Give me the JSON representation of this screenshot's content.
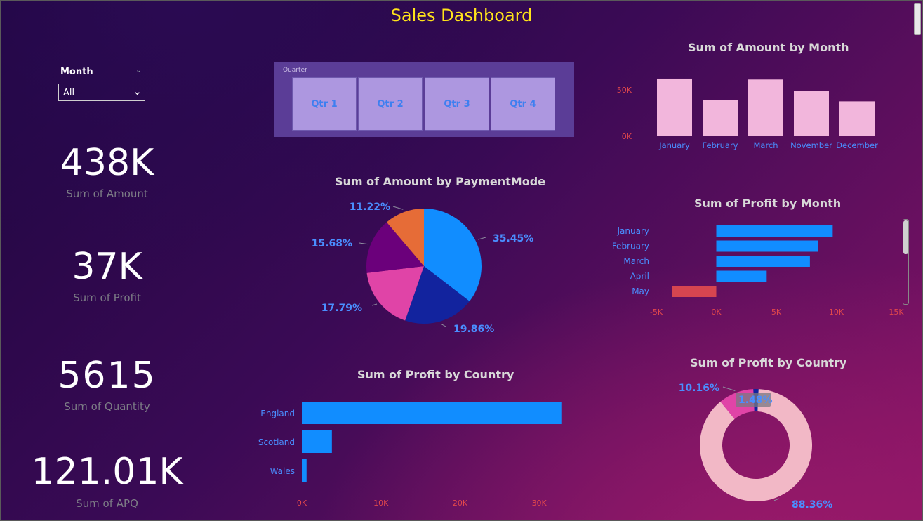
{
  "title": "Sales Dashboard",
  "slicer": {
    "label": "Month",
    "value": "All"
  },
  "kpis": [
    {
      "value": "438K",
      "label": "Sum of Amount"
    },
    {
      "value": "37K",
      "label": "Sum of Profit"
    },
    {
      "value": "5615",
      "label": "Sum of Quantity"
    },
    {
      "value": "121.01K",
      "label": "Sum of APQ"
    }
  ],
  "quarter_slicer": {
    "label": "Quarter",
    "options": [
      "Qtr 1",
      "Qtr 2",
      "Qtr 3",
      "Qtr 4"
    ]
  },
  "colors": {
    "bar_pink": "#f2b6dc",
    "bar_blue": "#118dff",
    "negative": "#d64550",
    "title_yellow": "#ffe31a",
    "label_blue": "#4a8eff",
    "axis_red": "#e0474c"
  },
  "chart_data": [
    {
      "id": "amount_by_month",
      "type": "bar",
      "title": "Sum of Amount by Month",
      "categories": [
        "January",
        "February",
        "March",
        "November",
        "December"
      ],
      "values": [
        62000,
        39000,
        61000,
        49000,
        37500
      ],
      "yticks": [
        "0K",
        "50K"
      ],
      "ytick_values": [
        0,
        50000
      ],
      "ylim": [
        0,
        65000
      ]
    },
    {
      "id": "amount_by_paymentmode",
      "type": "pie",
      "title": "Sum of Amount by PaymentMode",
      "values": [
        35.45,
        19.86,
        17.79,
        15.68,
        11.22
      ],
      "labels": [
        "35.45%",
        "19.86%",
        "17.79%",
        "15.68%",
        "11.22%"
      ],
      "colors": [
        "#118dff",
        "#12239e",
        "#e044a7",
        "#6b007b",
        "#e66c37"
      ]
    },
    {
      "id": "profit_by_month",
      "type": "bar",
      "orientation": "horizontal",
      "title": "Sum of Profit by Month",
      "categories": [
        "January",
        "February",
        "March",
        "April",
        "May"
      ],
      "values": [
        9700,
        8500,
        7800,
        4200,
        -3700
      ],
      "xticks": [
        "-5K",
        "0K",
        "5K",
        "10K",
        "15K"
      ],
      "xtick_values": [
        -5000,
        0,
        5000,
        10000,
        15000
      ],
      "xlim": [
        -5000,
        15000
      ]
    },
    {
      "id": "profit_by_country_bar",
      "type": "bar",
      "orientation": "horizontal",
      "title": "Sum of Profit by Country",
      "categories": [
        "England",
        "Scotland",
        "Wales"
      ],
      "values": [
        32800,
        3800,
        600
      ],
      "xticks": [
        "0K",
        "10K",
        "20K",
        "30K"
      ],
      "xtick_values": [
        0,
        10000,
        20000,
        30000
      ],
      "xlim": [
        0,
        33000
      ]
    },
    {
      "id": "profit_by_country_donut",
      "type": "pie",
      "title": "Sum of Profit by Country",
      "values": [
        88.36,
        10.16,
        1.48
      ],
      "labels": [
        "88.36%",
        "10.16%",
        "1.48%"
      ],
      "colors": [
        "#f2b8c6",
        "#e044a7",
        "#12239e"
      ]
    }
  ]
}
